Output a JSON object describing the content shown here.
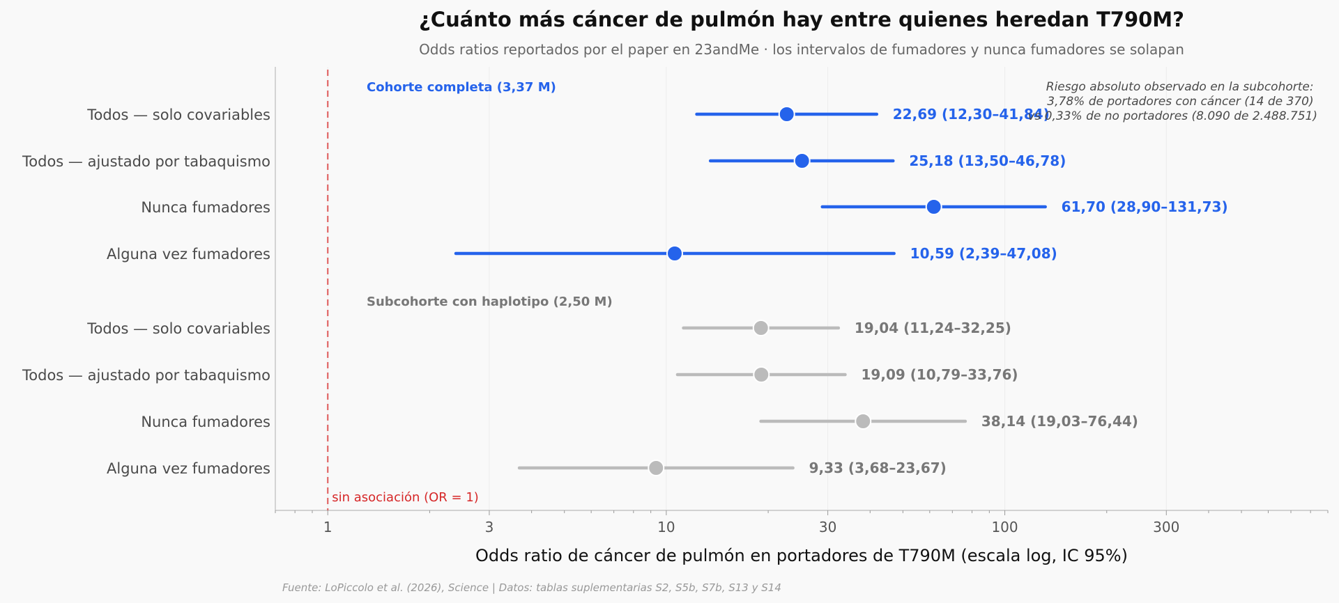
{
  "chart_data": {
    "type": "forest",
    "title": "¿Cuánto más cáncer de pulmón hay entre quienes heredan T790M?",
    "subtitle": "Odds ratios reportados por el paper en 23andMe · los intervalos de fumadores y nunca fumadores se solapan",
    "xlabel": "Odds ratio de cáncer de pulmón en portadores de T790M (escala log, IC 95%)",
    "x_scale": "log",
    "xlim": [
      0.7,
      900
    ],
    "x_ticks": [
      1,
      3,
      10,
      30,
      100,
      300
    ],
    "x_tick_labels": [
      "1",
      "3",
      "10",
      "30",
      "100",
      "300"
    ],
    "reference_line": {
      "value": 1,
      "label": "sin asociación (OR = 1)",
      "color": "#d62728"
    },
    "annotation": [
      "Riesgo absoluto observado en la subcohorte:",
      "3,78% de portadores con cáncer (14 de 370)",
      "vs 0,33% de no portadores (8.090 de 2.488.751)"
    ],
    "source": "Fuente: LoPiccolo et al. (2026), Science | Datos: tablas suplementarias S2, S5b, S7b, S13 y S14",
    "groups": [
      {
        "name": "Cohorte completa (3,37 M)",
        "color": "#2563eb",
        "rows": [
          {
            "label": "Todos — solo covariables",
            "or": 22.69,
            "lo": 12.3,
            "hi": 41.84,
            "text": "22,69  (12,30–41,84)"
          },
          {
            "label": "Todos — ajustado por tabaquismo",
            "or": 25.18,
            "lo": 13.5,
            "hi": 46.78,
            "text": "25,18  (13,50–46,78)"
          },
          {
            "label": "Nunca fumadores",
            "or": 61.7,
            "lo": 28.9,
            "hi": 131.73,
            "text": "61,70  (28,90–131,73)"
          },
          {
            "label": "Alguna vez fumadores",
            "or": 10.59,
            "lo": 2.39,
            "hi": 47.08,
            "text": "10,59  (2,39–47,08)"
          }
        ]
      },
      {
        "name": "Subcohorte con haplotipo (2,50 M)",
        "color": "#777777",
        "line_color": "#bbbbbb",
        "rows": [
          {
            "label": "Todos — solo covariables",
            "or": 19.04,
            "lo": 11.24,
            "hi": 32.25,
            "text": "19,04  (11,24–32,25)"
          },
          {
            "label": "Todos — ajustado por tabaquismo",
            "or": 19.09,
            "lo": 10.79,
            "hi": 33.76,
            "text": "19,09  (10,79–33,76)"
          },
          {
            "label": "Nunca fumadores",
            "or": 38.14,
            "lo": 19.03,
            "hi": 76.44,
            "text": "38,14  (19,03–76,44)"
          },
          {
            "label": "Alguna vez fumadores",
            "or": 9.33,
            "lo": 3.68,
            "hi": 23.67,
            "text": "9,33  (3,68–23,67)"
          }
        ]
      }
    ]
  }
}
